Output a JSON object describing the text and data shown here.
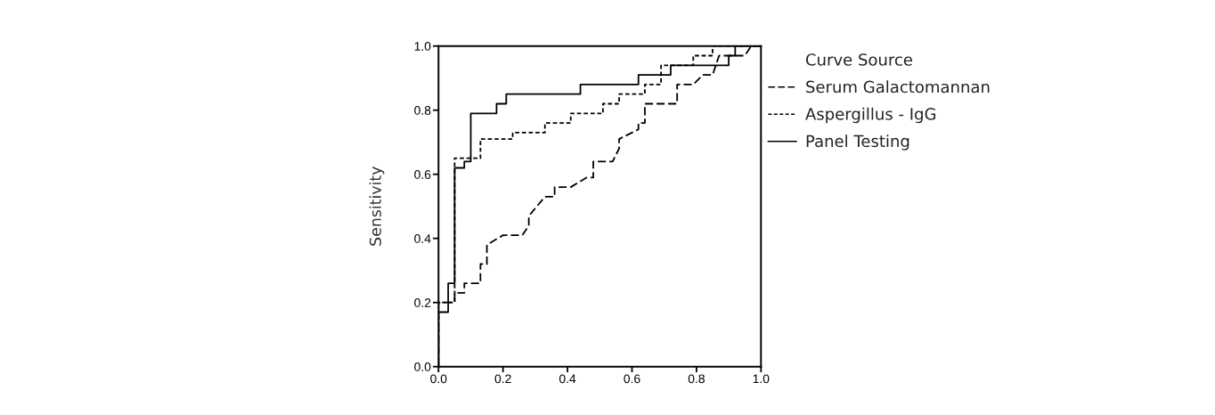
{
  "chart_data": {
    "type": "line",
    "ylabel": "Sensitivity",
    "legend_title": "Curve Source",
    "legend": "right",
    "grid": false,
    "xlim": [
      0,
      1
    ],
    "ylim": [
      0,
      1
    ],
    "xticks": [
      {
        "value": 0,
        "label": "0.0"
      },
      {
        "value": 0.2,
        "label": "0.2"
      },
      {
        "value": 0.4,
        "label": "0.4"
      },
      {
        "value": 0.6,
        "label": "0.6"
      },
      {
        "value": 0.8,
        "label": "0.8"
      },
      {
        "value": 1,
        "label": "1.0"
      }
    ],
    "yticks": [
      {
        "value": 0,
        "label": "0.0"
      },
      {
        "value": 0.2,
        "label": "0.2"
      },
      {
        "value": 0.4,
        "label": "0.4"
      },
      {
        "value": 0.6,
        "label": "0.6"
      },
      {
        "value": 0.8,
        "label": "0.8"
      },
      {
        "value": 1,
        "label": "1.0"
      }
    ],
    "series": [
      {
        "name": "Serum Galactomannan",
        "color": "#000000",
        "line_style": "dashed",
        "x": [
          0,
          0,
          0.05,
          0.05,
          0.08,
          0.08,
          0.13,
          0.13,
          0.15,
          0.15,
          0.2,
          0.26,
          0.28,
          0.28,
          0.33,
          0.36,
          0.36,
          0.41,
          0.46,
          0.48,
          0.48,
          0.54,
          0.56,
          0.56,
          0.62,
          0.62,
          0.64,
          0.64,
          0.74,
          0.74,
          0.79,
          0.82,
          0.85,
          0.87,
          0.95,
          0.97,
          1
        ],
        "values": [
          0,
          0.2,
          0.2,
          0.23,
          0.23,
          0.26,
          0.26,
          0.32,
          0.32,
          0.38,
          0.41,
          0.41,
          0.44,
          0.47,
          0.53,
          0.53,
          0.56,
          0.56,
          0.59,
          0.59,
          0.64,
          0.64,
          0.68,
          0.71,
          0.74,
          0.76,
          0.76,
          0.82,
          0.82,
          0.88,
          0.88,
          0.91,
          0.91,
          0.97,
          0.97,
          1,
          1
        ]
      },
      {
        "name": "Aspergillus - IgG",
        "color": "#000000",
        "line_style": "dotted",
        "x": [
          0,
          0,
          0.05,
          0.05,
          0.13,
          0.13,
          0.23,
          0.23,
          0.33,
          0.33,
          0.41,
          0.41,
          0.51,
          0.51,
          0.56,
          0.56,
          0.64,
          0.64,
          0.69,
          0.69,
          0.79,
          0.79,
          0.85,
          0.85,
          1
        ],
        "values": [
          0,
          0.2,
          0.2,
          0.65,
          0.65,
          0.71,
          0.71,
          0.73,
          0.73,
          0.76,
          0.76,
          0.79,
          0.79,
          0.82,
          0.82,
          0.85,
          0.85,
          0.88,
          0.88,
          0.94,
          0.94,
          0.97,
          0.97,
          1,
          1
        ]
      },
      {
        "name": "Panel Testing",
        "color": "#000000",
        "line_style": "solid",
        "x": [
          0,
          0,
          0.03,
          0.03,
          0.05,
          0.05,
          0.08,
          0.08,
          0.1,
          0.1,
          0.18,
          0.18,
          0.21,
          0.21,
          0.44,
          0.44,
          0.62,
          0.62,
          0.72,
          0.72,
          0.9,
          0.9,
          0.92,
          0.92,
          1
        ],
        "values": [
          0,
          0.17,
          0.17,
          0.26,
          0.26,
          0.62,
          0.62,
          0.64,
          0.64,
          0.79,
          0.79,
          0.82,
          0.82,
          0.85,
          0.85,
          0.88,
          0.88,
          0.91,
          0.91,
          0.94,
          0.94,
          0.97,
          0.97,
          1,
          1
        ]
      }
    ]
  }
}
